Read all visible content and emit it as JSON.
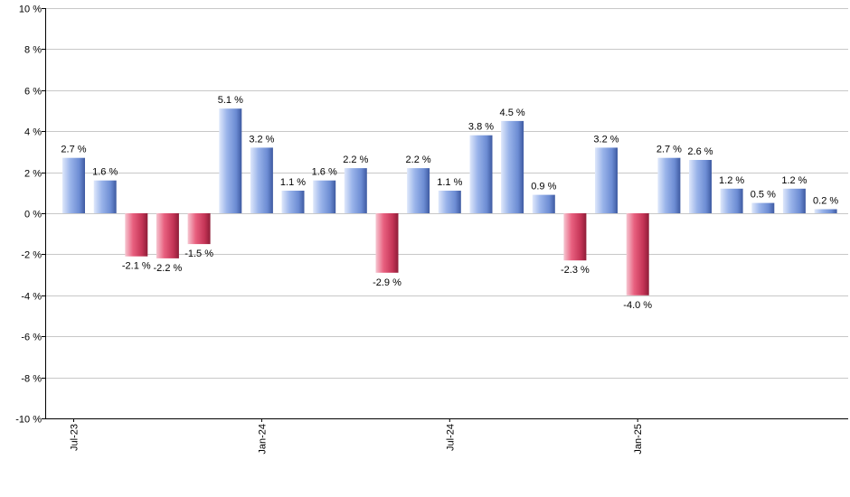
{
  "chart_data": {
    "type": "bar",
    "x": [
      "2023-07",
      "2023-08",
      "2023-09",
      "2023-10",
      "2023-11",
      "2023-12",
      "2024-01",
      "2024-02",
      "2024-03",
      "2024-04",
      "2024-05",
      "2024-06",
      "2024-07",
      "2024-08",
      "2024-09",
      "2024-10",
      "2024-11",
      "2024-12",
      "2025-01",
      "2025-02",
      "2025-03",
      "2025-04",
      "2025-05",
      "2025-06",
      "2025-07"
    ],
    "values": [
      2.7,
      1.6,
      -2.1,
      -2.2,
      -1.5,
      5.1,
      3.2,
      1.1,
      1.6,
      2.2,
      -2.9,
      2.2,
      1.1,
      3.8,
      4.5,
      0.9,
      -2.3,
      3.2,
      -4.0,
      2.7,
      2.6,
      1.2,
      0.5,
      1.2,
      0.2
    ],
    "data_labels": [
      "2.7 %",
      "1.6 %",
      "-2.1 %",
      "-2.2 %",
      "-1.5 %",
      "5.1 %",
      "3.2 %",
      "1.1 %",
      "1.6 %",
      "2.2 %",
      "-2.9 %",
      "2.2 %",
      "1.1 %",
      "3.8 %",
      "4.5 %",
      "0.9 %",
      "-2.3 %",
      "3.2 %",
      "-4.0 %",
      "2.7 %",
      "2.6 %",
      "1.2 %",
      "0.5 %",
      "1.2 %",
      "0.2 %"
    ],
    "ylim": [
      -10,
      10
    ],
    "y_ticks": [
      10,
      8,
      6,
      4,
      2,
      0,
      -2,
      -4,
      -6,
      -8,
      -10
    ],
    "y_tick_labels": [
      "10 %",
      "8 %",
      "6 %",
      "4 %",
      "2 %",
      "0 %",
      "-2 %",
      "-4 %",
      "-6 %",
      "-8 %",
      "-10 %"
    ],
    "x_ticks": [
      {
        "label": "Jul-23",
        "at": "2023-07"
      },
      {
        "label": "Jan-24",
        "at": "2024-01"
      },
      {
        "label": "Jul-24",
        "at": "2024-07"
      },
      {
        "label": "Jan-25",
        "at": "2025-01"
      }
    ],
    "grid": true,
    "colors": {
      "positive": "#6f8fd6",
      "negative": "#cc3355"
    }
  }
}
